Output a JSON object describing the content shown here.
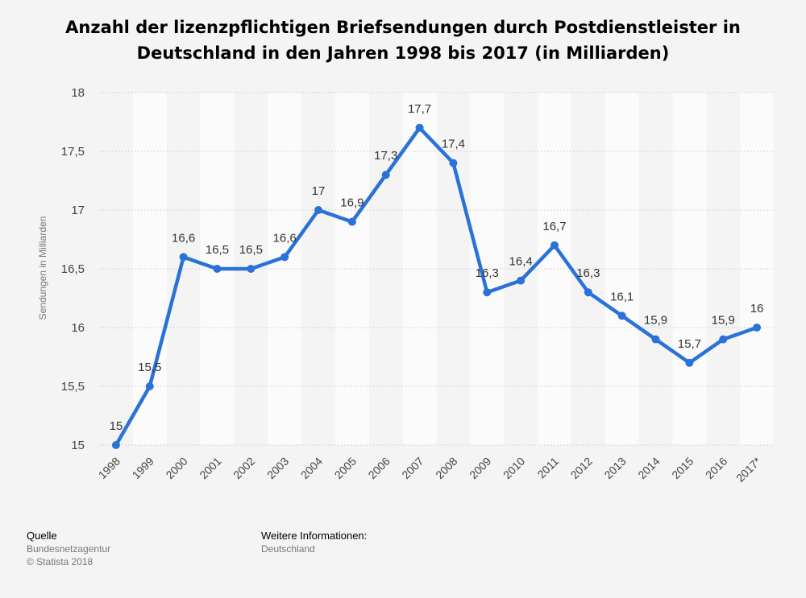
{
  "chart_data": {
    "type": "line",
    "title_lines": [
      "Anzahl der lizenzpflichtigen Briefsendungen durch Postdienstleister in",
      "Deutschland in den Jahren 1998 bis 2017 (in Milliarden)"
    ],
    "ylabel": "Sendungen in Milliarden",
    "xlabel": "",
    "ylim": [
      15,
      18
    ],
    "yticks": [
      "15",
      "15,5",
      "16",
      "16,5",
      "17",
      "17,5",
      "18"
    ],
    "ytick_values": [
      15,
      15.5,
      16,
      16.5,
      17,
      17.5,
      18
    ],
    "categories": [
      "1998",
      "1999",
      "2000",
      "2001",
      "2002",
      "2003",
      "2004",
      "2005",
      "2006",
      "2007",
      "2008",
      "2009",
      "2010",
      "2011",
      "2012",
      "2013",
      "2014",
      "2015",
      "2016",
      "2017*"
    ],
    "values": [
      15,
      15.5,
      16.6,
      16.5,
      16.5,
      16.6,
      17,
      16.9,
      17.3,
      17.7,
      17.4,
      16.3,
      16.4,
      16.7,
      16.3,
      16.1,
      15.9,
      15.7,
      15.9,
      16
    ],
    "labels": [
      "15",
      "15,5",
      "16,6",
      "16,5",
      "16,5",
      "16,6",
      "17",
      "16,9",
      "17,3",
      "17,7",
      "17,4",
      "16,3",
      "16,4",
      "16,7",
      "16,3",
      "16,1",
      "15,9",
      "15,7",
      "15,9",
      "16"
    ],
    "grid": true,
    "line_color": "#2a72d8"
  },
  "footer": {
    "source_head": "Quelle",
    "source_name": "Bundesnetzagentur",
    "copyright": "© Statista 2018",
    "info_head": "Weitere Informationen:",
    "info_value": "Deutschland"
  }
}
